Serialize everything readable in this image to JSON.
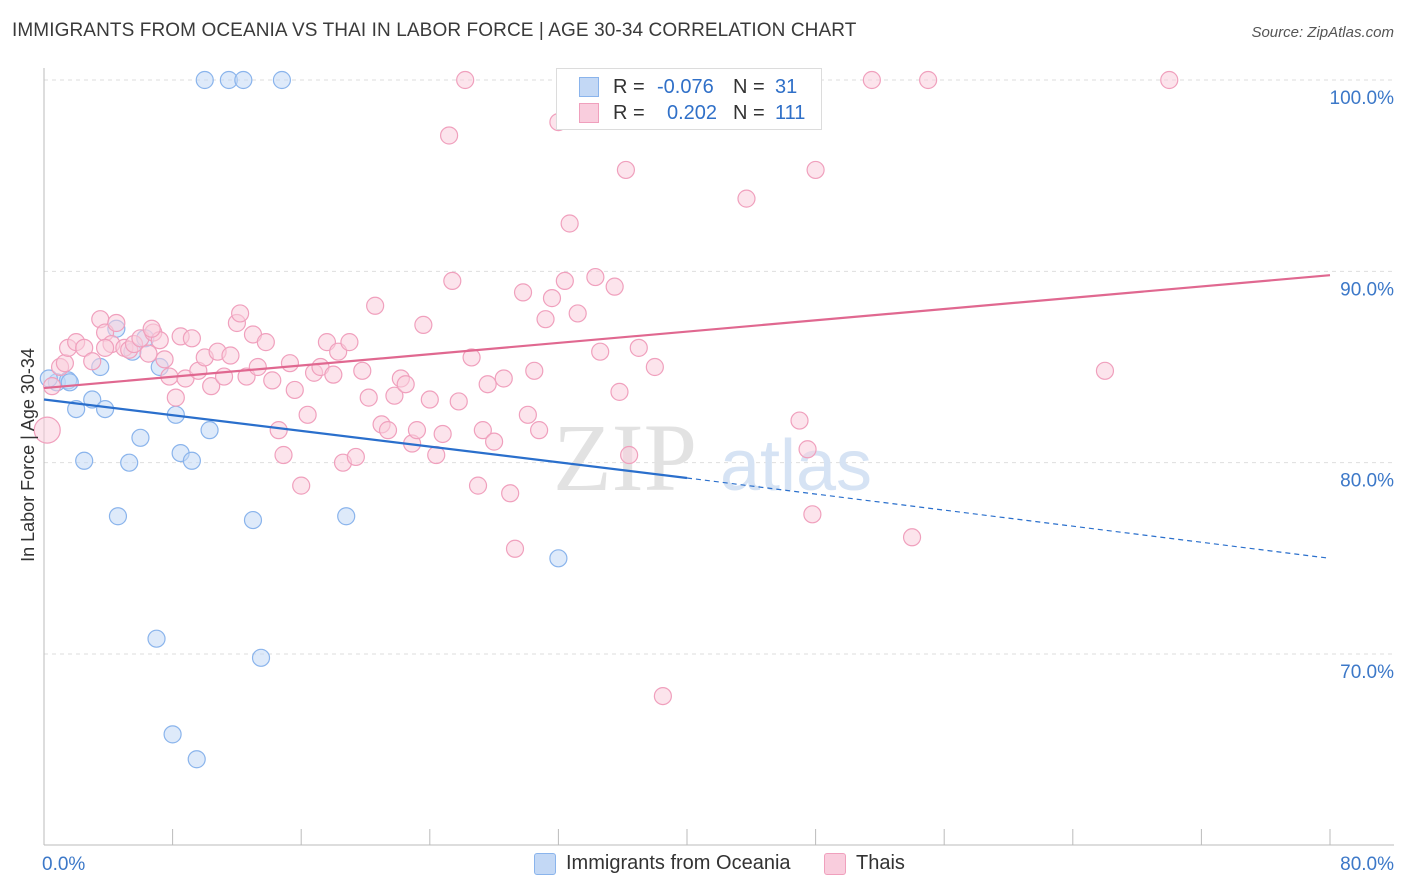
{
  "title": "IMMIGRANTS FROM OCEANIA VS THAI IN LABOR FORCE | AGE 30-34 CORRELATION CHART",
  "source": "Source: ZipAtlas.com",
  "watermark": {
    "zip": "ZIP",
    "atlas": "atlas"
  },
  "legend": {
    "r_label": "R =",
    "n_label": "N =",
    "rows": [
      {
        "r": "-0.076",
        "n": "31"
      },
      {
        "r": "0.202",
        "n": "111"
      }
    ]
  },
  "chart_data": {
    "type": "scatter",
    "xlabel": "",
    "ylabel": "In Labor Force | Age 30-34",
    "xlim": [
      0,
      80
    ],
    "ylim": [
      60,
      102
    ],
    "x_tick_labels": [
      "0.0%",
      "80.0%"
    ],
    "y_ticks": [
      70,
      80,
      90,
      100
    ],
    "y_tick_labels": [
      "70.0%",
      "80.0%",
      "90.0%",
      "100.0%"
    ],
    "grid": true,
    "colors": {
      "oceania": "#8ab4ec",
      "oceania_fill": "#c3d8f5",
      "oceania_line": "#2a6fcc",
      "thai": "#f0a0bd",
      "thai_fill": "#f9cddd",
      "thai_line": "#e06890"
    },
    "series": [
      {
        "name": "Immigrants from Oceania",
        "key": "oceania",
        "trend": {
          "x0": 0,
          "y0": 83.3,
          "x1": 40,
          "y1": 79.2,
          "x_dash_end": 80,
          "y_dash_end": 75.0
        },
        "points": [
          [
            0.8,
            84.2
          ],
          [
            1.5,
            84.3
          ],
          [
            1.6,
            84.2
          ],
          [
            2.0,
            82.8
          ],
          [
            2.5,
            80.1
          ],
          [
            3.0,
            83.3
          ],
          [
            3.5,
            85.0
          ],
          [
            3.8,
            82.8
          ],
          [
            4.5,
            87.0
          ],
          [
            4.6,
            77.2
          ],
          [
            5.3,
            80.0
          ],
          [
            5.5,
            85.8
          ],
          [
            6.0,
            81.3
          ],
          [
            6.3,
            86.5
          ],
          [
            7.0,
            70.8
          ],
          [
            7.2,
            85.0
          ],
          [
            8.0,
            65.8
          ],
          [
            8.2,
            82.5
          ],
          [
            8.5,
            80.5
          ],
          [
            9.2,
            80.1
          ],
          [
            9.5,
            64.5
          ],
          [
            10.0,
            100.0
          ],
          [
            10.3,
            81.7
          ],
          [
            11.5,
            100.0
          ],
          [
            12.4,
            100.0
          ],
          [
            13.0,
            77.0
          ],
          [
            13.5,
            69.8
          ],
          [
            14.8,
            100.0
          ],
          [
            18.8,
            77.2
          ],
          [
            32.0,
            75.0
          ],
          [
            0.3,
            84.4
          ]
        ]
      },
      {
        "name": "Thais",
        "key": "thai",
        "trend": {
          "x0": 0,
          "y0": 83.9,
          "x1": 80,
          "y1": 89.8
        },
        "points": [
          [
            0.2,
            81.7
          ],
          [
            0.5,
            84.0
          ],
          [
            1.0,
            85.0
          ],
          [
            1.3,
            85.2
          ],
          [
            1.5,
            86.0
          ],
          [
            2.0,
            86.3
          ],
          [
            2.5,
            86.0
          ],
          [
            3.0,
            85.3
          ],
          [
            3.5,
            87.5
          ],
          [
            3.8,
            86.8
          ],
          [
            4.2,
            86.2
          ],
          [
            4.5,
            87.3
          ],
          [
            5.0,
            86.0
          ],
          [
            5.3,
            85.9
          ],
          [
            5.6,
            86.2
          ],
          [
            6.0,
            86.5
          ],
          [
            6.5,
            85.7
          ],
          [
            6.8,
            86.8
          ],
          [
            7.2,
            86.4
          ],
          [
            7.5,
            85.4
          ],
          [
            7.8,
            84.5
          ],
          [
            8.2,
            83.4
          ],
          [
            8.5,
            86.6
          ],
          [
            8.8,
            84.4
          ],
          [
            9.2,
            86.5
          ],
          [
            9.6,
            84.8
          ],
          [
            10.0,
            85.5
          ],
          [
            10.4,
            84.0
          ],
          [
            10.8,
            85.8
          ],
          [
            11.2,
            84.5
          ],
          [
            11.6,
            85.6
          ],
          [
            12.0,
            87.3
          ],
          [
            12.2,
            87.8
          ],
          [
            12.6,
            84.5
          ],
          [
            13.0,
            86.7
          ],
          [
            13.3,
            85.0
          ],
          [
            13.8,
            86.3
          ],
          [
            14.2,
            84.3
          ],
          [
            14.6,
            81.7
          ],
          [
            14.9,
            80.4
          ],
          [
            15.3,
            85.2
          ],
          [
            15.6,
            83.8
          ],
          [
            16.0,
            78.8
          ],
          [
            16.4,
            82.5
          ],
          [
            16.8,
            84.7
          ],
          [
            17.2,
            85.0
          ],
          [
            17.6,
            86.3
          ],
          [
            18.0,
            84.6
          ],
          [
            18.3,
            85.8
          ],
          [
            18.6,
            80.0
          ],
          [
            19.0,
            86.3
          ],
          [
            19.4,
            80.3
          ],
          [
            19.8,
            84.8
          ],
          [
            20.2,
            83.4
          ],
          [
            20.6,
            88.2
          ],
          [
            21.0,
            82.0
          ],
          [
            21.4,
            81.7
          ],
          [
            21.8,
            83.5
          ],
          [
            22.2,
            84.4
          ],
          [
            22.5,
            84.1
          ],
          [
            22.9,
            81.0
          ],
          [
            23.2,
            81.7
          ],
          [
            23.6,
            87.2
          ],
          [
            24.0,
            83.3
          ],
          [
            24.4,
            80.4
          ],
          [
            24.8,
            81.5
          ],
          [
            25.2,
            97.1
          ],
          [
            25.4,
            89.5
          ],
          [
            25.8,
            83.2
          ],
          [
            26.2,
            100.0
          ],
          [
            26.6,
            85.5
          ],
          [
            27.0,
            78.8
          ],
          [
            27.3,
            81.7
          ],
          [
            27.6,
            84.1
          ],
          [
            28.0,
            81.1
          ],
          [
            28.6,
            84.4
          ],
          [
            29.0,
            78.4
          ],
          [
            29.3,
            75.5
          ],
          [
            29.8,
            88.9
          ],
          [
            30.1,
            82.5
          ],
          [
            30.5,
            84.8
          ],
          [
            30.8,
            81.7
          ],
          [
            31.2,
            87.5
          ],
          [
            31.6,
            88.6
          ],
          [
            32.0,
            97.8
          ],
          [
            32.4,
            89.5
          ],
          [
            32.7,
            92.5
          ],
          [
            33.2,
            87.8
          ],
          [
            34.3,
            89.7
          ],
          [
            34.6,
            85.8
          ],
          [
            35.5,
            89.2
          ],
          [
            35.8,
            83.7
          ],
          [
            36.2,
            95.3
          ],
          [
            36.4,
            80.4
          ],
          [
            37.0,
            86.0
          ],
          [
            38.0,
            85.0
          ],
          [
            38.5,
            67.8
          ],
          [
            41.5,
            100.0
          ],
          [
            43.7,
            93.8
          ],
          [
            47.0,
            82.2
          ],
          [
            47.5,
            80.7
          ],
          [
            47.8,
            77.3
          ],
          [
            48.0,
            95.3
          ],
          [
            51.5,
            100.0
          ],
          [
            55.0,
            100.0
          ],
          [
            54.0,
            76.1
          ],
          [
            66.0,
            84.8
          ],
          [
            70.0,
            100.0
          ],
          [
            3.8,
            86.0
          ],
          [
            6.7,
            87.0
          ]
        ]
      }
    ]
  },
  "bottom_legend": [
    "Immigrants from Oceania",
    "Thais"
  ]
}
